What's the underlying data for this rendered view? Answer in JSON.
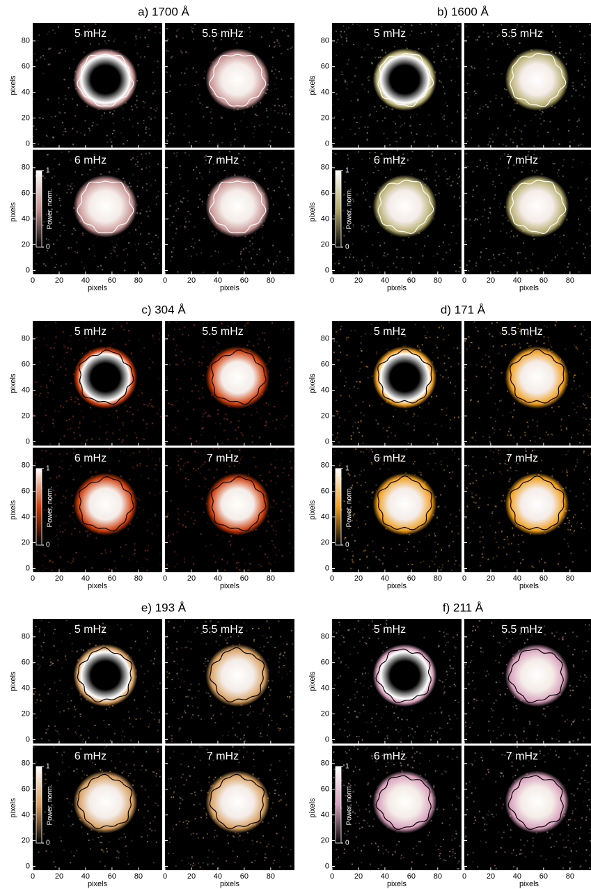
{
  "chart_data": [
    {
      "type": "image",
      "title": "a) 1700 Å",
      "panels": [
        "5 mHz",
        "5.5 mHz",
        "6 mHz",
        "7 mHz"
      ],
      "xlabel": "pixels",
      "ylabel": "pixels",
      "xlim": [
        0,
        98
      ],
      "ylim": [
        -3,
        94
      ],
      "xticks": [
        0,
        20,
        40,
        60,
        80
      ],
      "yticks": [
        0,
        20,
        40,
        60,
        80
      ],
      "color": "#c89494",
      "contour_color": "#ffffff",
      "colorbar": {
        "label": "Power, norm.",
        "ticks": [
          0,
          1
        ]
      }
    },
    {
      "type": "image",
      "title": "b) 1600 Å",
      "panels": [
        "5 mHz",
        "5.5 mHz",
        "6 mHz",
        "7 mHz"
      ],
      "xlabel": "pixels",
      "ylabel": "pixels",
      "xlim": [
        0,
        98
      ],
      "ylim": [
        -3,
        94
      ],
      "xticks": [
        0,
        20,
        40,
        60,
        80
      ],
      "yticks": [
        0,
        20,
        40,
        60,
        80
      ],
      "color": "#b4ac6c",
      "contour_color": "#ffffff",
      "colorbar": {
        "label": "Power, norm.",
        "ticks": [
          0,
          1
        ]
      }
    },
    {
      "type": "image",
      "title": "c) 304 Å",
      "panels": [
        "5 mHz",
        "5.5 mHz",
        "6 mHz",
        "7 mHz"
      ],
      "xlabel": "pixels",
      "ylabel": "pixels",
      "xlim": [
        0,
        98
      ],
      "ylim": [
        -3,
        94
      ],
      "xticks": [
        0,
        20,
        40,
        60,
        80
      ],
      "yticks": [
        0,
        20,
        40,
        60,
        80
      ],
      "color": "#d0400c",
      "contour_color": "#000000",
      "colorbar": {
        "label": "Power, norm.",
        "ticks": [
          0,
          1
        ]
      }
    },
    {
      "type": "image",
      "title": "d) 171 Å",
      "panels": [
        "5 mHz",
        "5.5 mHz",
        "6 mHz",
        "7 mHz"
      ],
      "xlabel": "pixels",
      "ylabel": "pixels",
      "xlim": [
        0,
        98
      ],
      "ylim": [
        -3,
        94
      ],
      "xticks": [
        0,
        20,
        40,
        60,
        80
      ],
      "yticks": [
        0,
        20,
        40,
        60,
        80
      ],
      "color": "#f0a020",
      "contour_color": "#000000",
      "colorbar": {
        "label": "Power, norm.",
        "ticks": [
          0,
          1
        ]
      }
    },
    {
      "type": "image",
      "title": "e) 193 Å",
      "panels": [
        "5 mHz",
        "5.5 mHz",
        "6 mHz",
        "7 mHz"
      ],
      "xlabel": "pixels",
      "ylabel": "pixels",
      "xlim": [
        0,
        98
      ],
      "ylim": [
        -3,
        94
      ],
      "xticks": [
        0,
        20,
        40,
        60,
        80
      ],
      "yticks": [
        0,
        20,
        40,
        60,
        80
      ],
      "color": "#d8a060",
      "contour_color": "#000000",
      "colorbar": {
        "label": "Power, norm.",
        "ticks": [
          0,
          1
        ]
      }
    },
    {
      "type": "image",
      "title": "f) 211 Å",
      "panels": [
        "5 mHz",
        "5.5 mHz",
        "6 mHz",
        "7 mHz"
      ],
      "xlabel": "pixels",
      "ylabel": "pixels",
      "xlim": [
        0,
        98
      ],
      "ylim": [
        -3,
        94
      ],
      "xticks": [
        0,
        20,
        40,
        60,
        80
      ],
      "yticks": [
        0,
        20,
        40,
        60,
        80
      ],
      "color": "#d8a0bc",
      "contour_color": "#000000",
      "colorbar": {
        "label": "Power, norm.",
        "ticks": [
          0,
          1
        ]
      }
    }
  ]
}
